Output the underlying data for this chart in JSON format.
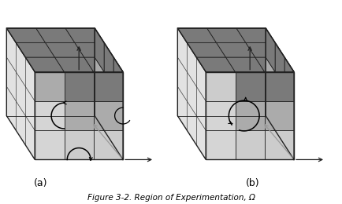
{
  "fig_width": 4.34,
  "fig_height": 2.6,
  "dpi": 100,
  "title": "Figure 3-2. Region of Experimentation, Ω",
  "label_a": "(a)",
  "label_b": "(b)",
  "dark_gray": "#7a7a7a",
  "medium_gray": "#ababab",
  "light_gray": "#cccccc",
  "very_light_gray": "#e2e2e2",
  "lighter_gray": "#d5d5d5",
  "line_color": "#222222",
  "lw_grid": 0.6,
  "lw_border": 1.0
}
